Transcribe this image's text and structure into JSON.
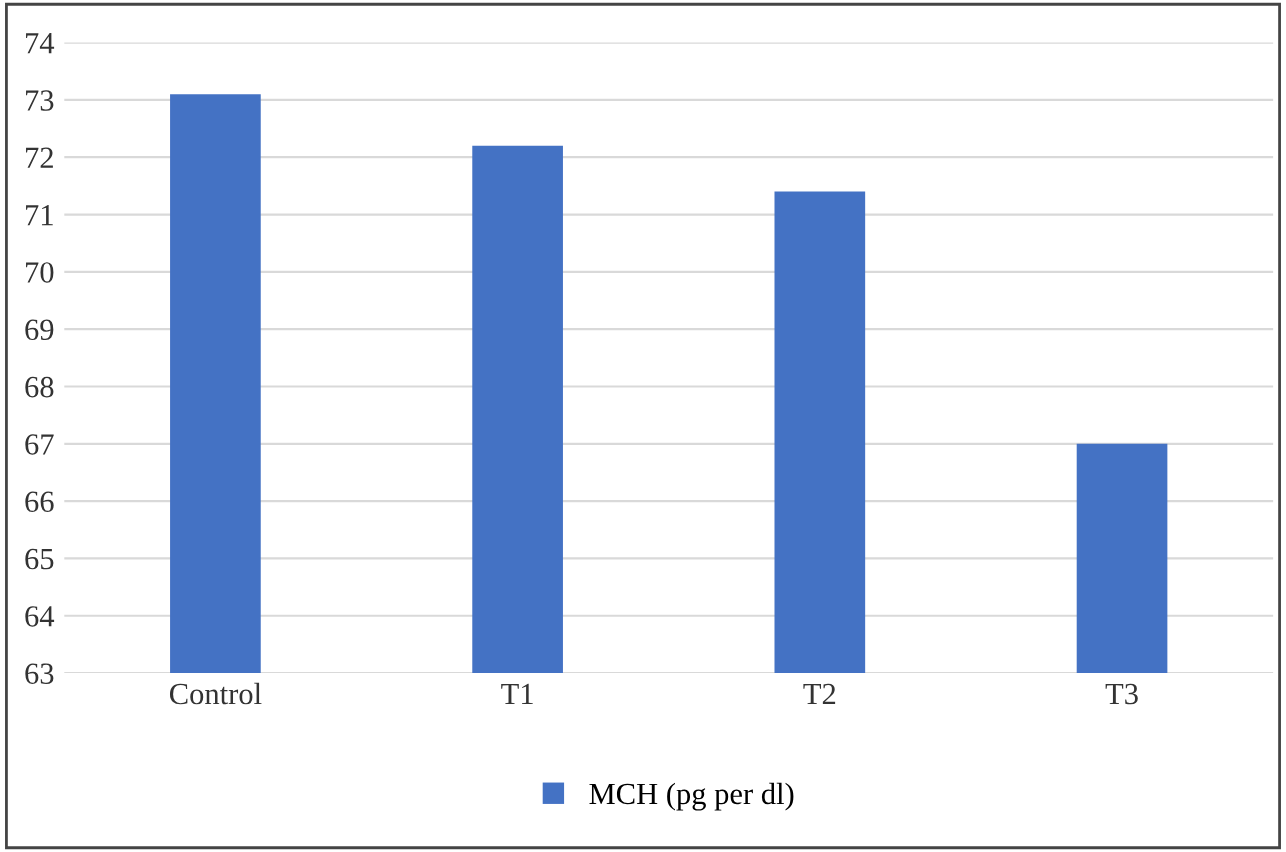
{
  "chart_data": {
    "type": "bar",
    "categories": [
      "Control",
      "T1",
      "T2",
      "T3"
    ],
    "series": [
      {
        "name": "MCH (pg per dl)",
        "color": "#4472c4",
        "values": [
          73.1,
          72.2,
          71.4,
          67.0
        ]
      }
    ],
    "ylim": [
      63,
      74
    ],
    "yticks": [
      63,
      64,
      65,
      66,
      67,
      68,
      69,
      70,
      71,
      72,
      73,
      74
    ],
    "grid": "y",
    "legend": "bottom"
  }
}
